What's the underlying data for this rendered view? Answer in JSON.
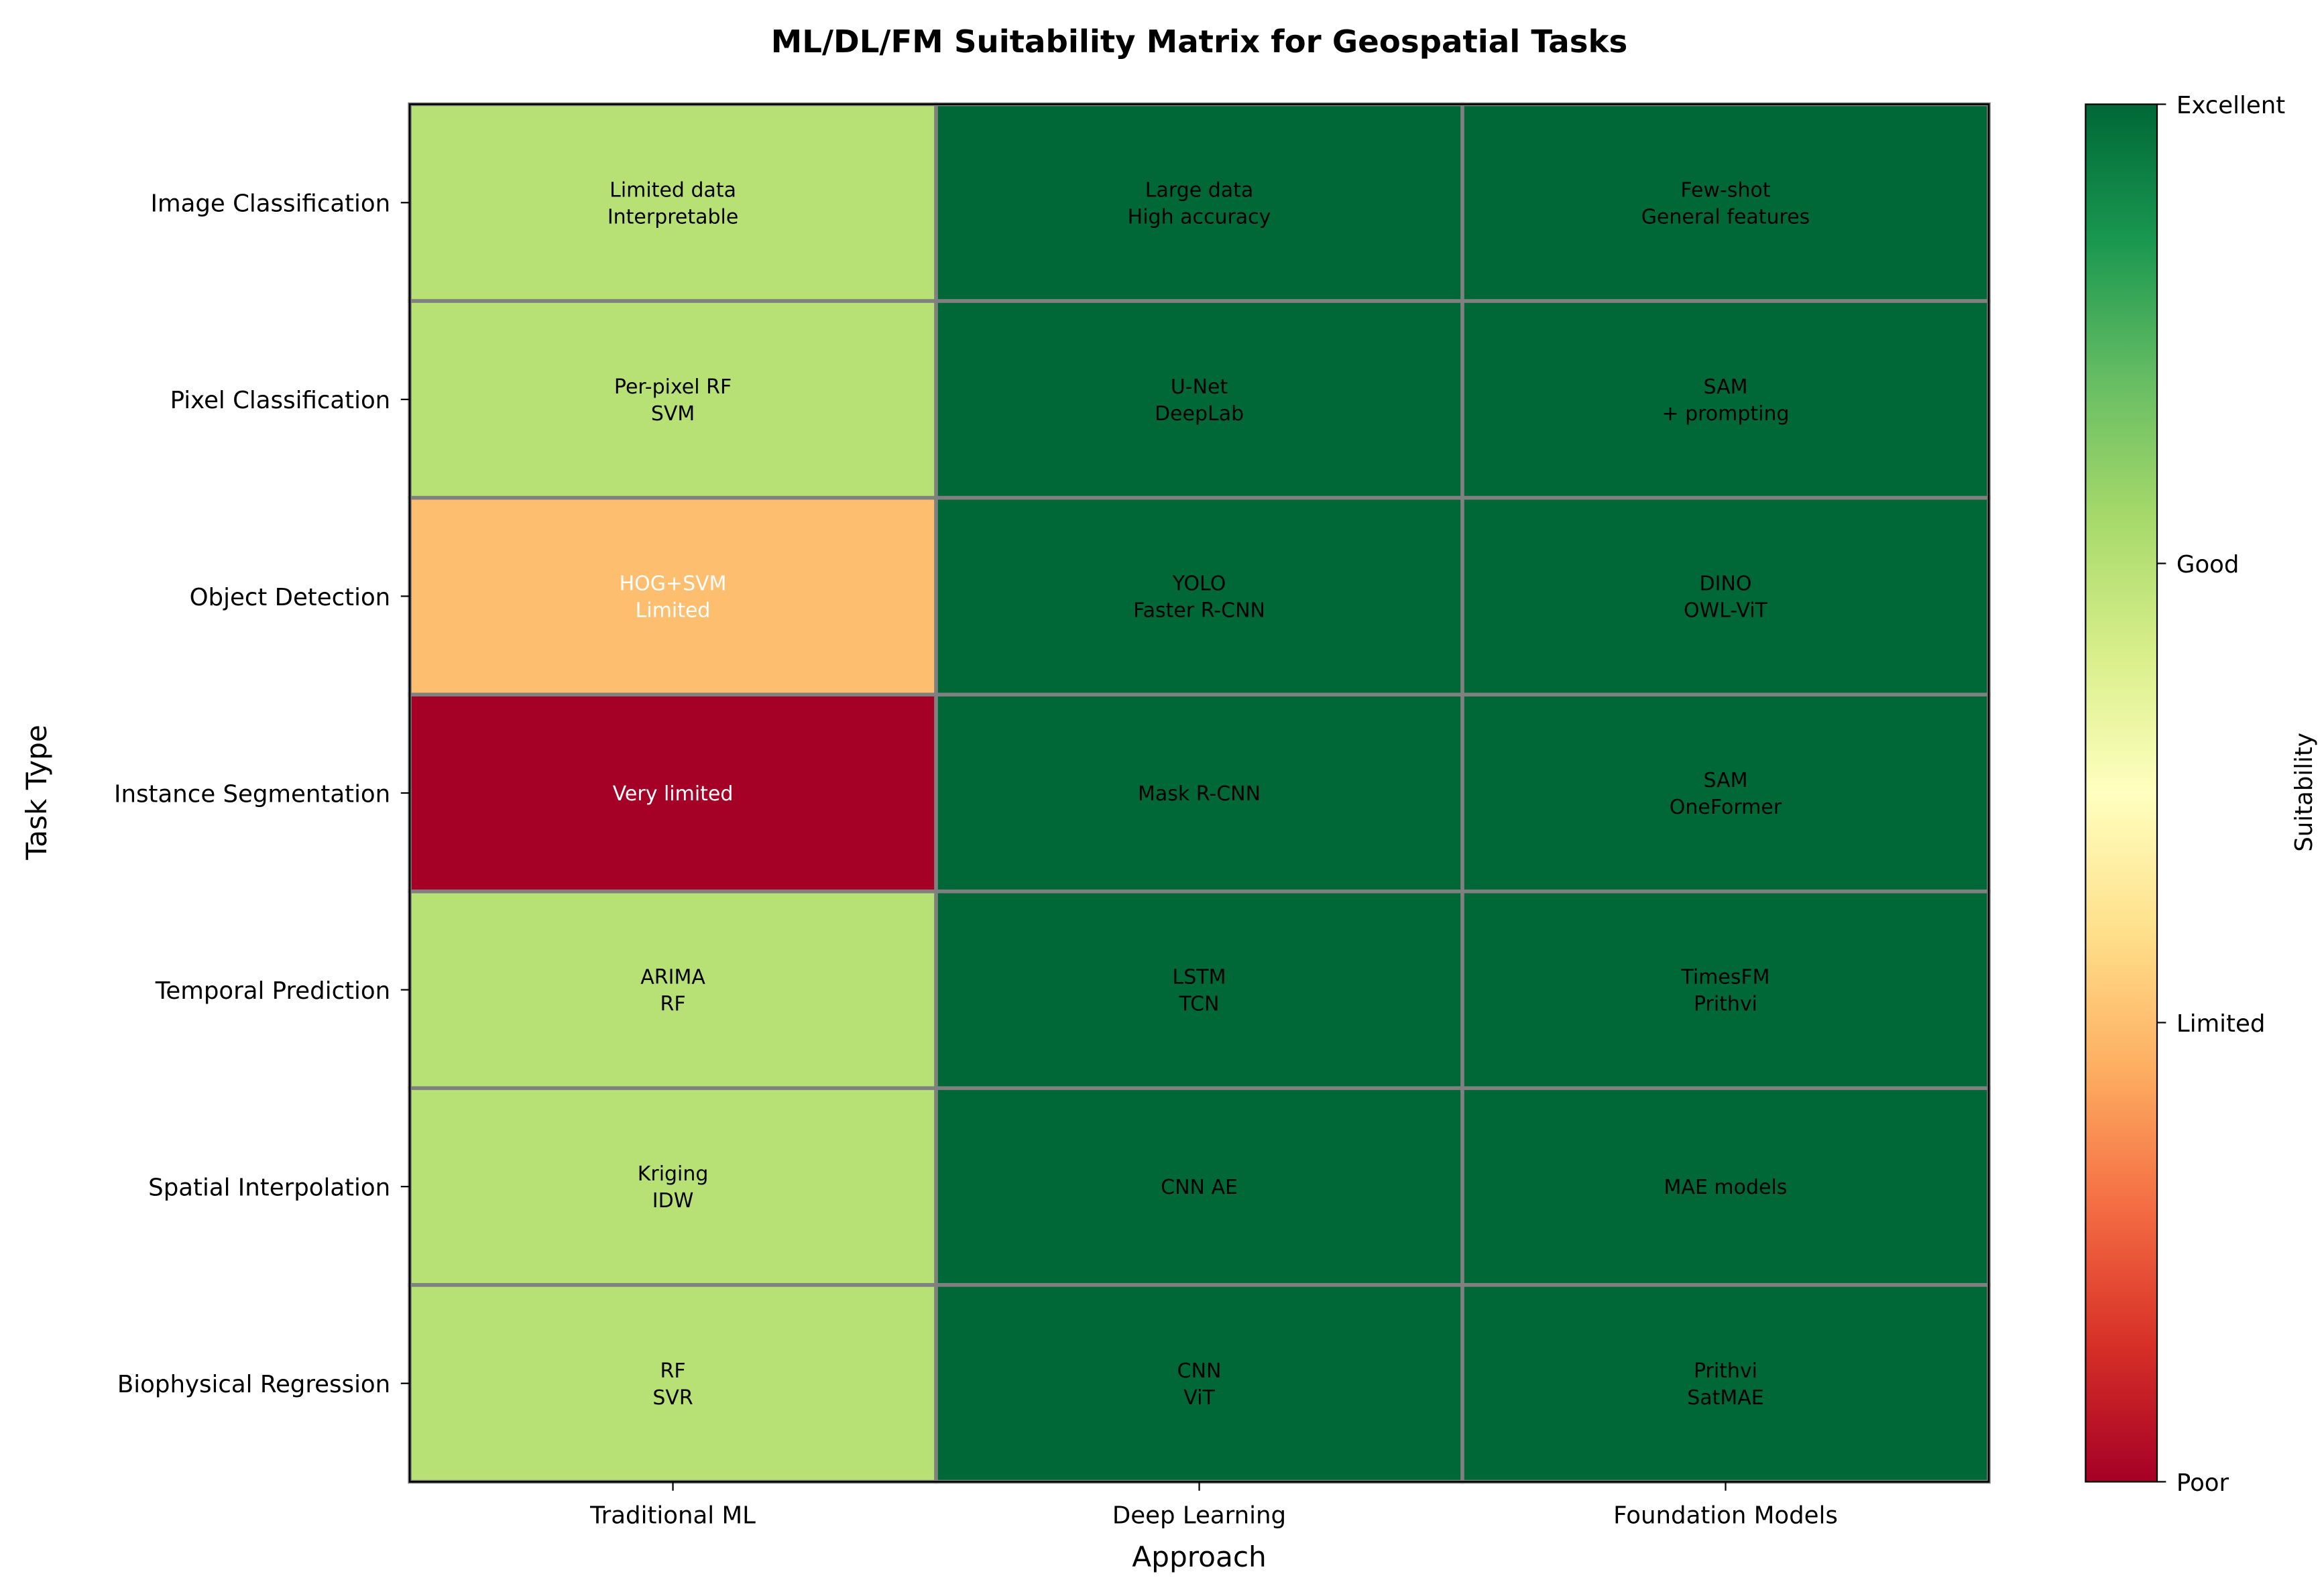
{
  "chart_data": {
    "type": "heatmap",
    "title": "ML/DL/FM Suitability Matrix for Geospatial Tasks",
    "xlabel": "Approach",
    "ylabel": "Task Type",
    "columns": [
      "Traditional ML",
      "Deep Learning",
      "Foundation Models"
    ],
    "rows": [
      "Image Classification",
      "Pixel Classification",
      "Object Detection",
      "Instance Segmentation",
      "Temporal Prediction",
      "Spatial Interpolation",
      "Biophysical Regression"
    ],
    "values": [
      [
        2,
        3,
        3
      ],
      [
        2,
        3,
        3
      ],
      [
        1,
        3,
        3
      ],
      [
        0,
        3,
        3
      ],
      [
        2,
        3,
        3
      ],
      [
        2,
        3,
        3
      ],
      [
        2,
        3,
        3
      ]
    ],
    "annotations": [
      [
        [
          "Limited data",
          "Interpretable"
        ],
        [
          "Large data",
          "High accuracy"
        ],
        [
          "Few-shot",
          "General features"
        ]
      ],
      [
        [
          "Per-pixel RF",
          "SVM"
        ],
        [
          "U-Net",
          "DeepLab"
        ],
        [
          "SAM",
          "+ prompting"
        ]
      ],
      [
        [
          "HOG+SVM",
          "Limited"
        ],
        [
          "YOLO",
          "Faster R-CNN"
        ],
        [
          "DINO",
          "OWL-ViT"
        ]
      ],
      [
        [
          "Very limited"
        ],
        [
          "Mask R-CNN"
        ],
        [
          "SAM",
          "OneFormer"
        ]
      ],
      [
        [
          "ARIMA",
          "RF"
        ],
        [
          "LSTM",
          "TCN"
        ],
        [
          "TimesFM",
          "Prithvi"
        ]
      ],
      [
        [
          "Kriging",
          "IDW"
        ],
        [
          "CNN AE"
        ],
        [
          "MAE models"
        ]
      ],
      [
        [
          "RF",
          "SVR"
        ],
        [
          "CNN",
          "ViT"
        ],
        [
          "Prithvi",
          "SatMAE"
        ]
      ]
    ],
    "colormap": "RdYlGn",
    "vmin": 0,
    "vmax": 3,
    "colorbar": {
      "label": "Suitability",
      "ticks": [
        0,
        1,
        2,
        3
      ],
      "tick_labels": [
        "Poor",
        "Limited",
        "Good",
        "Excellent"
      ]
    },
    "cmap_stops": [
      "#a50026",
      "#d73027",
      "#f46d43",
      "#fdae61",
      "#fee08b",
      "#ffffbf",
      "#d9ef8b",
      "#a6d96a",
      "#66bd63",
      "#1a9850",
      "#006837"
    ],
    "grid_color": "#808080"
  }
}
